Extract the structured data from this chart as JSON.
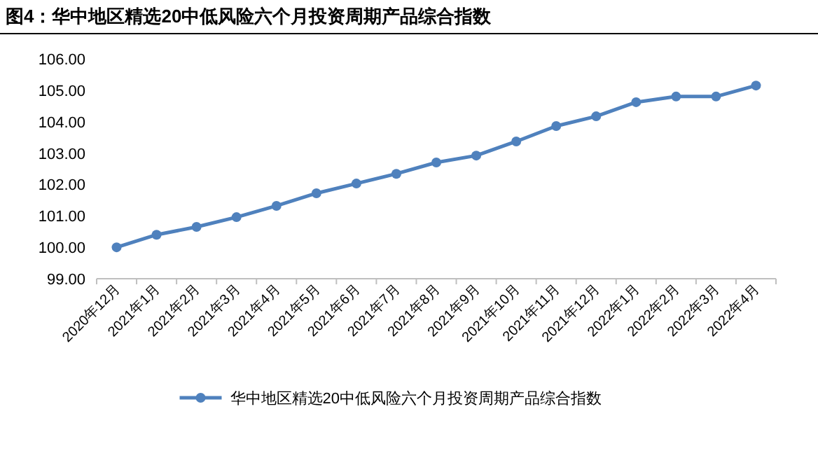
{
  "chart_data": {
    "type": "line",
    "title": "图4：华中地区精选20中低风险六个月投资周期产品综合指数",
    "categories": [
      "2020年12月",
      "2021年1月",
      "2021年2月",
      "2021年3月",
      "2021年4月",
      "2021年5月",
      "2021年6月",
      "2021年7月",
      "2021年8月",
      "2021年9月",
      "2021年10月",
      "2021年11月",
      "2021年12月",
      "2022年1月",
      "2022年2月",
      "2022年3月",
      "2022年4月"
    ],
    "series": [
      {
        "name": "华中地区精选20中低风险六个月投资周期产品综合指数",
        "color": "#4f81bd",
        "values": [
          100.0,
          100.4,
          100.65,
          100.96,
          101.32,
          101.72,
          102.03,
          102.34,
          102.7,
          102.92,
          103.37,
          103.86,
          104.17,
          104.62,
          104.8,
          104.8,
          105.15
        ]
      }
    ],
    "ylim": [
      99,
      106
    ],
    "yticks": [
      {
        "value": 99,
        "label": "99.00"
      },
      {
        "value": 100,
        "label": "100.00"
      },
      {
        "value": 101,
        "label": "101.00"
      },
      {
        "value": 102,
        "label": "102.00"
      },
      {
        "value": 103,
        "label": "103.00"
      },
      {
        "value": 104,
        "label": "104.00"
      },
      {
        "value": 105,
        "label": "105.00"
      },
      {
        "value": 106,
        "label": "106.00"
      }
    ],
    "legend": "bottom",
    "marker": "circle",
    "line_style": "solid"
  }
}
